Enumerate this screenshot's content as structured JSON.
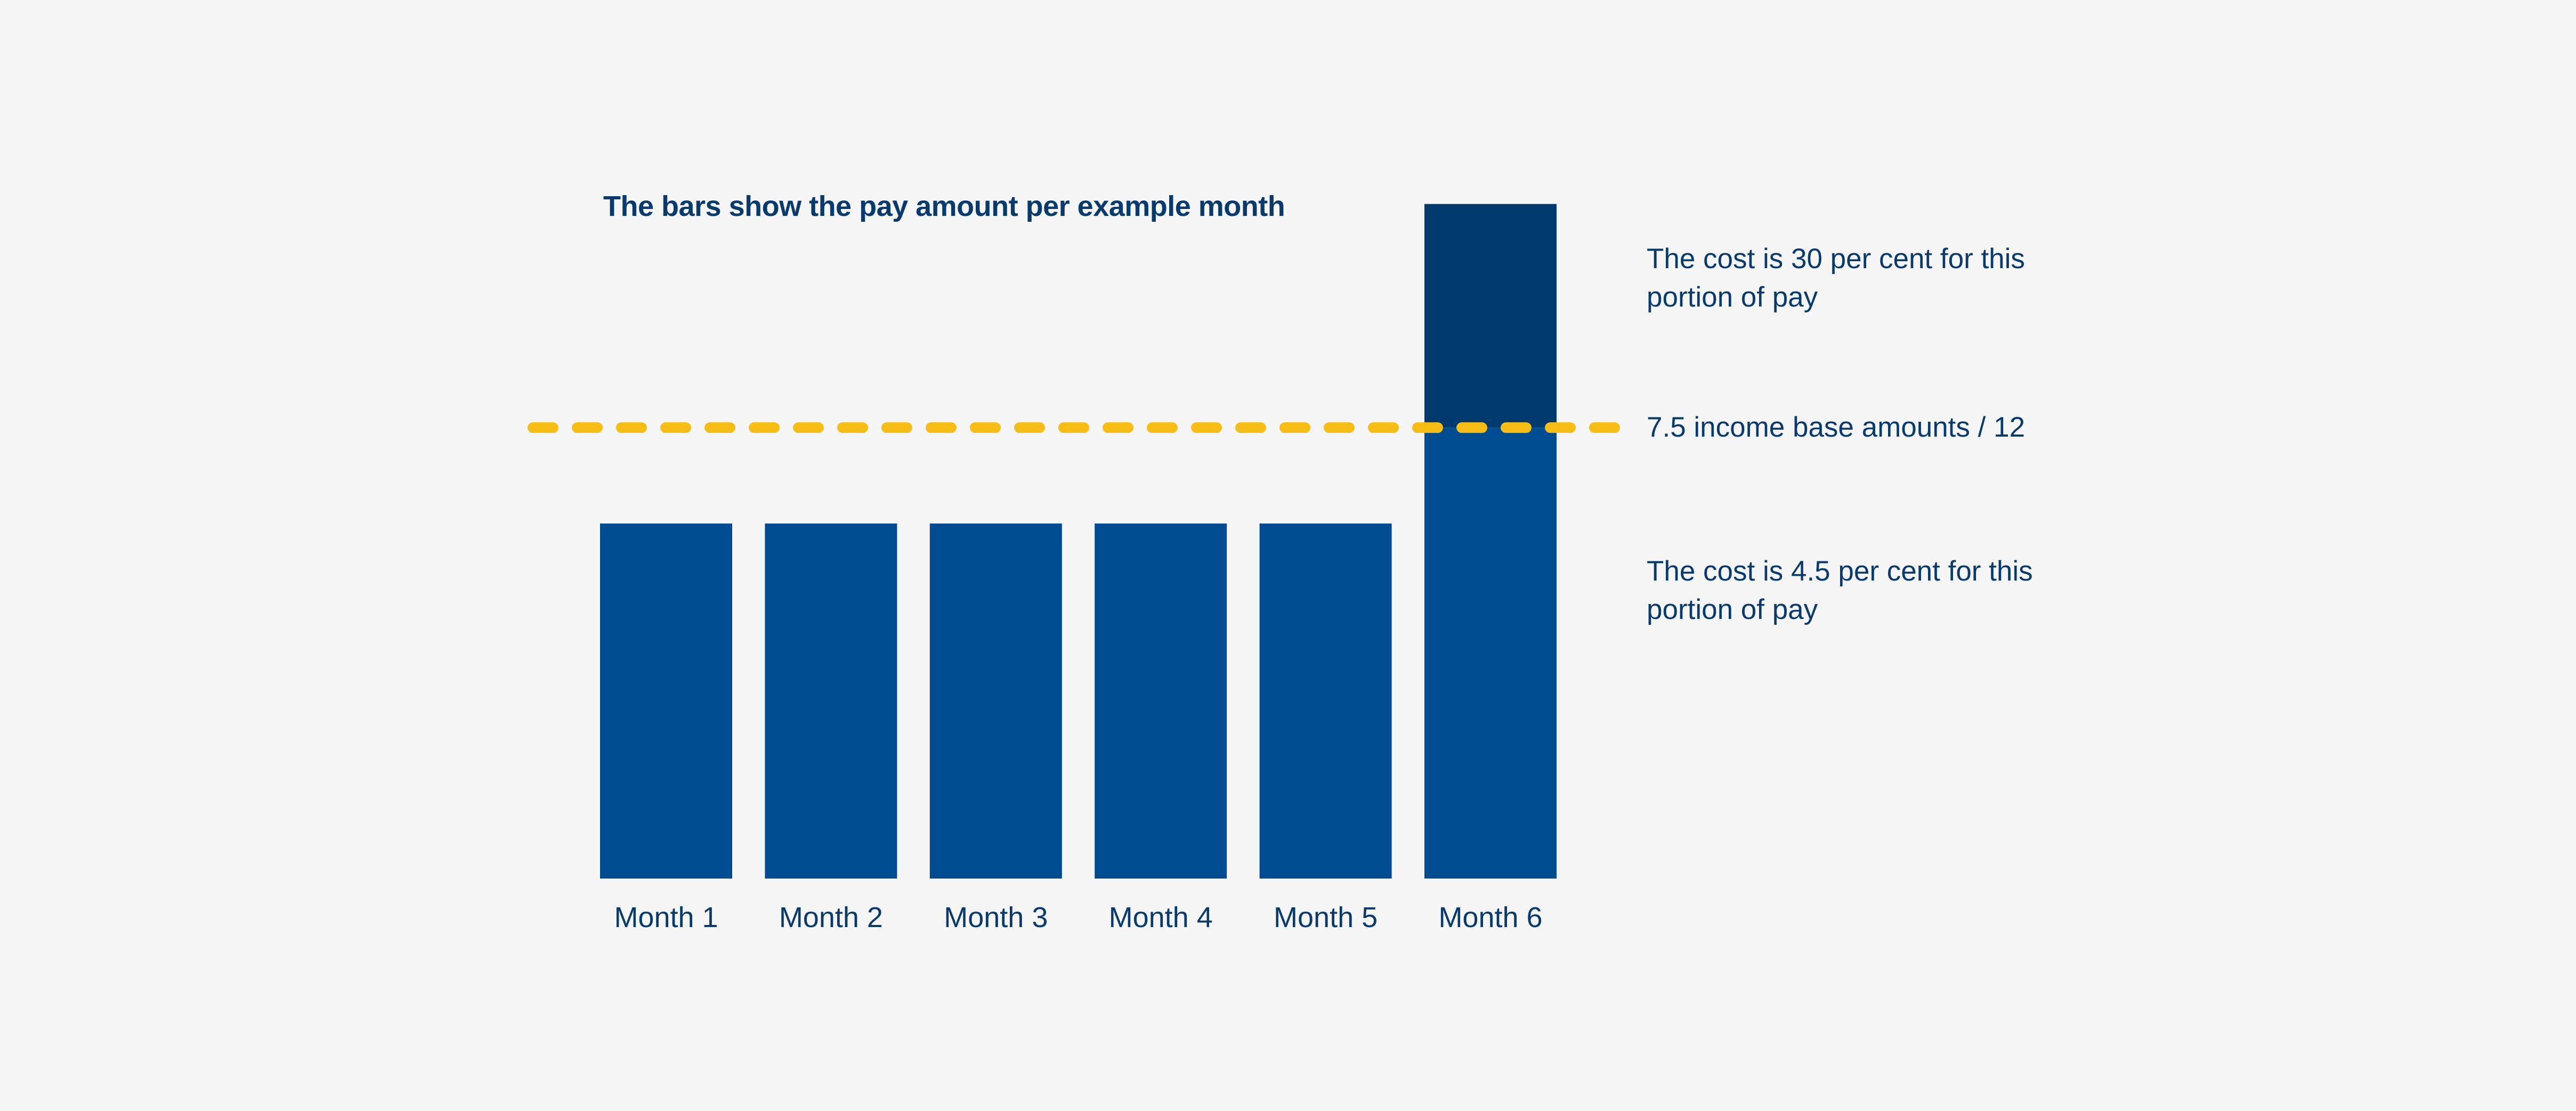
{
  "chart_data": {
    "type": "bar",
    "title": "The bars show the pay amount per example month",
    "categories": [
      "Month 1",
      "Month 2",
      "Month 3",
      "Month 4",
      "Month 5",
      "Month 6"
    ],
    "series": [
      {
        "name": "",
        "values": [
          1,
          1,
          1,
          1,
          1,
          1.9
        ]
      }
    ],
    "threshold": {
      "label": "7.5 income base amounts / 12",
      "value": 1.27,
      "color": "#f6bd16",
      "style": "dashed"
    },
    "ylim": [
      0,
      2
    ],
    "grid": false,
    "annotations": {
      "above_threshold": "The cost is 30 per cent for this portion of pay",
      "below_threshold": "The cost is 4.5 per cent for this portion of pay"
    },
    "colors": {
      "bar": "#004c91",
      "bar_above_threshold": "#003a6e",
      "text": "#083a6b",
      "background": "#f5f5f6"
    }
  }
}
